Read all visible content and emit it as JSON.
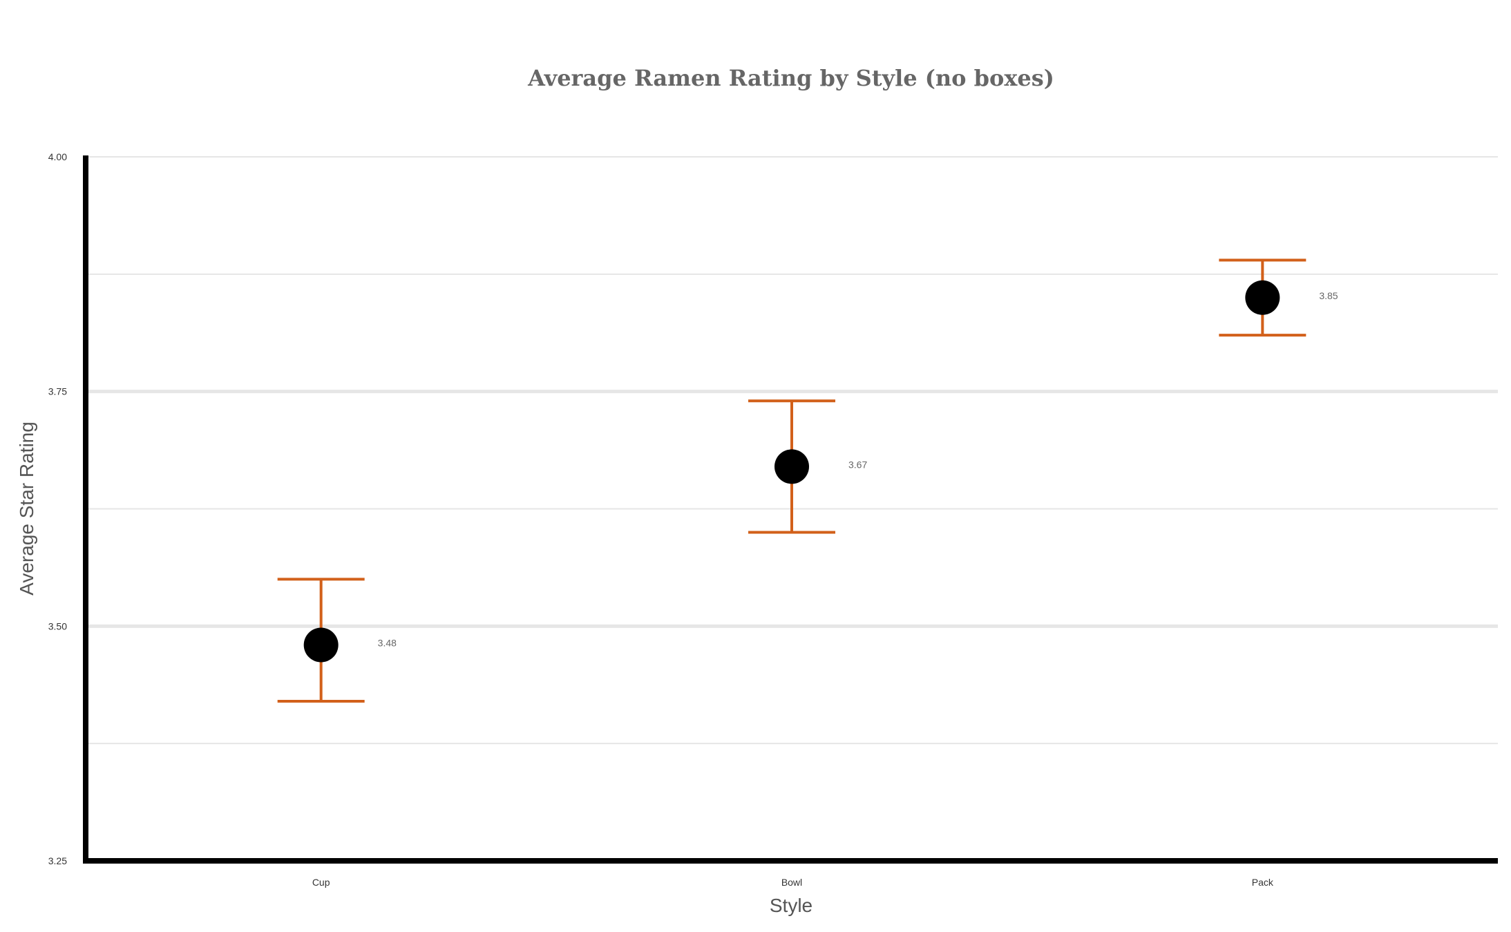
{
  "chart_data": {
    "type": "scatter",
    "title": "Average Ramen Rating by Style (no boxes)",
    "xlabel": "Style",
    "ylabel": "Average Star Rating",
    "categories": [
      "Cup",
      "Bowl",
      "Pack"
    ],
    "values": [
      3.48,
      3.67,
      3.85
    ],
    "value_labels": [
      "3.48",
      "3.67",
      "3.85"
    ],
    "error_low": [
      3.42,
      3.6,
      3.81
    ],
    "error_high": [
      3.55,
      3.74,
      3.89
    ],
    "ylim": [
      3.25,
      4.0
    ],
    "y_ticks": [
      3.25,
      3.5,
      3.75,
      4.0
    ],
    "y_tick_labels": [
      "3.25",
      "3.50",
      "3.75",
      "4.00"
    ],
    "y_minor_gridlines": [
      3.375,
      3.625,
      3.875
    ],
    "grid": true,
    "legend": "none",
    "marker_color": "#000000",
    "error_bar_color": "#D2601A",
    "gridline_color": "#E6E6E6",
    "axis_color": "#000000",
    "title_color": "#666666"
  }
}
